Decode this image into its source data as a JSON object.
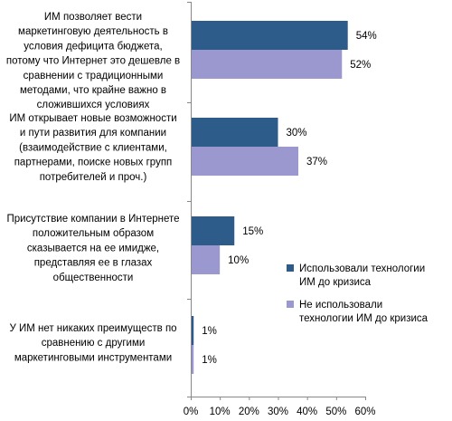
{
  "chart_data": {
    "type": "bar",
    "orientation": "horizontal",
    "categories": [
      [
        "ИМ позволяет вести",
        "маркетинговую деятельность в",
        "условия дефицита бюджета,",
        "потому что Интернет это дешевле в",
        "сравнении с традиционными",
        "методами, что крайне важно в",
        "сложившихся условиях"
      ],
      [
        "ИМ открывает новые возможности",
        "и пути развития для компании",
        "(взаимодействие с клиентами,",
        "партнерами, поиске новых групп",
        "потребителей и проч.)"
      ],
      [
        "Присутствие компании в Интернете",
        "положительным образом",
        "сказывается на ее имидже,",
        "представляя ее в глазах",
        "общественности"
      ],
      [
        "У ИМ нет никаких преимуществ по",
        "сравнению с другими",
        "маркетинговыми инструментами"
      ]
    ],
    "series": [
      {
        "name": "Использовали технологии ИМ до кризиса",
        "legend_lines": [
          "Использовали технологии",
          "ИМ до кризиса"
        ],
        "color": "#2E5C8A",
        "values": [
          54,
          30,
          15,
          1
        ]
      },
      {
        "name": "Не использовали технологии ИМ до кризиса",
        "legend_lines": [
          "Не использовали",
          "технологии ИМ до кризиса"
        ],
        "color": "#9B98CF",
        "values": [
          52,
          37,
          10,
          1
        ]
      }
    ],
    "x_ticks": [
      "0%",
      "10%",
      "20%",
      "30%",
      "40%",
      "50%",
      "60%"
    ],
    "xlim": [
      0,
      60
    ],
    "value_suffix": "%",
    "grid": false,
    "legend_position": "right"
  }
}
